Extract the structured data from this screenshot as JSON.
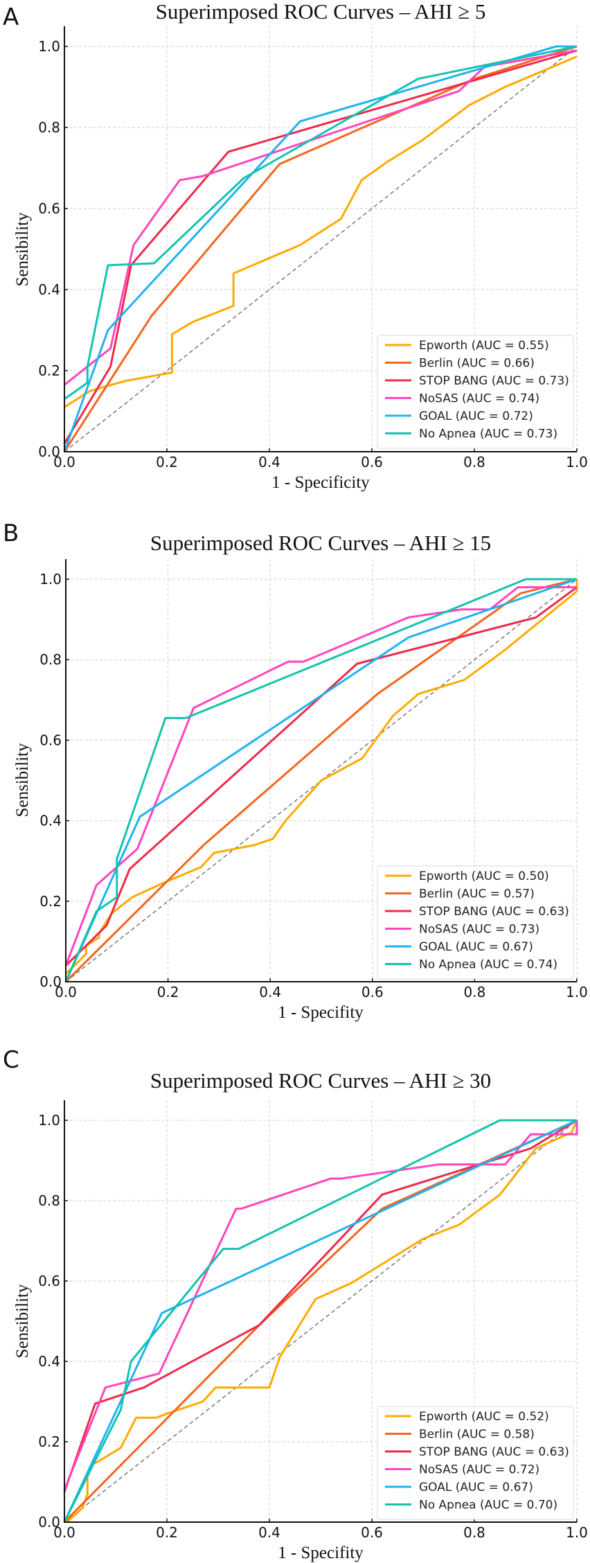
{
  "figure": {
    "panels": [
      "A",
      "B",
      "C"
    ]
  },
  "chart_data": [
    {
      "panel": "A",
      "type": "line",
      "title": "Superimposed ROC Curves – AHI ≥ 5",
      "xlabel": "1 - Specificity",
      "ylabel": "Sensibility",
      "xlim": [
        0,
        1
      ],
      "ylim": [
        0,
        1.05
      ],
      "xticks": [
        "0.0",
        "0.2",
        "0.4",
        "0.6",
        "0.8",
        "1.0"
      ],
      "yticks": [
        "0.0",
        "0.2",
        "0.4",
        "0.6",
        "0.8",
        "1.0"
      ],
      "grid": true,
      "legend_position": "lower-right",
      "reference_line": "diagonal dashed (chance)",
      "series": [
        {
          "name": "Epworth",
          "label": "Epworth (AUC = 0.55)",
          "auc": 0.55,
          "color": "#FFAA00",
          "points": [
            [
              0,
              0.11
            ],
            [
              0.05,
              0.15
            ],
            [
              0.12,
              0.175
            ],
            [
              0.21,
              0.195
            ],
            [
              0.21,
              0.29
            ],
            [
              0.25,
              0.32
            ],
            [
              0.33,
              0.36
            ],
            [
              0.33,
              0.44
            ],
            [
              0.46,
              0.51
            ],
            [
              0.54,
              0.575
            ],
            [
              0.58,
              0.67
            ],
            [
              0.63,
              0.715
            ],
            [
              0.7,
              0.77
            ],
            [
              0.79,
              0.855
            ],
            [
              0.86,
              0.9
            ],
            [
              1,
              0.975
            ]
          ]
        },
        {
          "name": "Berlin",
          "label": "Berlin (AUC = 0.66)",
          "auc": 0.66,
          "color": "#F5651C",
          "points": [
            [
              0,
              0
            ],
            [
              0.17,
              0.335
            ],
            [
              0.42,
              0.71
            ],
            [
              0.8,
              0.92
            ],
            [
              1,
              1
            ]
          ]
        },
        {
          "name": "STOP BANG",
          "label": "STOP BANG (AUC = 0.73)",
          "auc": 0.73,
          "color": "#EC2A4C",
          "points": [
            [
              0,
              0.02
            ],
            [
              0.09,
              0.21
            ],
            [
              0.13,
              0.46
            ],
            [
              0.32,
              0.74
            ],
            [
              1,
              0.99
            ]
          ]
        },
        {
          "name": "NoSAS",
          "label": "NoSAS (AUC = 0.74)",
          "auc": 0.74,
          "color": "#FF45BE",
          "points": [
            [
              0,
              0.165
            ],
            [
              0.09,
              0.255
            ],
            [
              0.135,
              0.51
            ],
            [
              0.225,
              0.67
            ],
            [
              0.27,
              0.68
            ],
            [
              0.77,
              0.89
            ],
            [
              0.82,
              0.95
            ],
            [
              1,
              0.99
            ]
          ]
        },
        {
          "name": "GOAL",
          "label": "GOAL (AUC = 0.72)",
          "auc": 0.72,
          "color": "#1FB3F0",
          "points": [
            [
              0,
              0
            ],
            [
              0.085,
              0.3
            ],
            [
              0.46,
              0.815
            ],
            [
              0.96,
              1
            ],
            [
              1,
              1
            ]
          ]
        },
        {
          "name": "No Apnea",
          "label": "No Apnea (AUC = 0.73)",
          "auc": 0.73,
          "color": "#14C3AE",
          "points": [
            [
              0,
              0.13
            ],
            [
              0.045,
              0.17
            ],
            [
              0.045,
              0.21
            ],
            [
              0.085,
              0.46
            ],
            [
              0.175,
              0.465
            ],
            [
              0.35,
              0.675
            ],
            [
              0.69,
              0.92
            ],
            [
              1,
              1
            ]
          ]
        }
      ]
    },
    {
      "panel": "B",
      "type": "line",
      "title": "Superimposed ROC Curves – AHI ≥ 15",
      "xlabel": "1 - Specifity",
      "ylabel": "Sensibility",
      "xlim": [
        0,
        1
      ],
      "ylim": [
        0,
        1.05
      ],
      "xticks": [
        "0.0",
        "0.2",
        "0.4",
        "0.6",
        "0.8",
        "1.0"
      ],
      "yticks": [
        "0.0",
        "0.2",
        "0.4",
        "0.6",
        "0.8",
        "1.0"
      ],
      "grid": true,
      "legend_position": "lower-right",
      "reference_line": "diagonal dashed (chance)",
      "series": [
        {
          "name": "Epworth",
          "label": "Epworth (AUC = 0.50)",
          "auc": 0.5,
          "color": "#FFAA00",
          "points": [
            [
              0,
              0.02
            ],
            [
              0.025,
              0.05
            ],
            [
              0.04,
              0.07
            ],
            [
              0.04,
              0.09
            ],
            [
              0.065,
              0.11
            ],
            [
              0.065,
              0.12
            ],
            [
              0.09,
              0.17
            ],
            [
              0.13,
              0.21
            ],
            [
              0.19,
              0.245
            ],
            [
              0.265,
              0.285
            ],
            [
              0.29,
              0.32
            ],
            [
              0.37,
              0.34
            ],
            [
              0.405,
              0.355
            ],
            [
              0.43,
              0.4
            ],
            [
              0.5,
              0.5
            ],
            [
              0.58,
              0.555
            ],
            [
              0.64,
              0.66
            ],
            [
              0.69,
              0.715
            ],
            [
              0.78,
              0.75
            ],
            [
              0.86,
              0.825
            ],
            [
              1,
              0.97
            ],
            [
              1,
              1
            ]
          ]
        },
        {
          "name": "Berlin",
          "label": "Berlin (AUC = 0.57)",
          "auc": 0.57,
          "color": "#F5651C",
          "points": [
            [
              0,
              0
            ],
            [
              0.27,
              0.34
            ],
            [
              0.61,
              0.715
            ],
            [
              0.89,
              0.965
            ],
            [
              1,
              1
            ]
          ]
        },
        {
          "name": "STOP BANG",
          "label": "STOP BANG (AUC = 0.63)",
          "auc": 0.63,
          "color": "#EC2A4C",
          "points": [
            [
              0,
              0.04
            ],
            [
              0.08,
              0.14
            ],
            [
              0.125,
              0.28
            ],
            [
              0.57,
              0.79
            ],
            [
              0.92,
              0.905
            ],
            [
              1,
              0.98
            ]
          ]
        },
        {
          "name": "NoSAS",
          "label": "NoSAS (AUC = 0.73)",
          "auc": 0.73,
          "color": "#FF45BE",
          "points": [
            [
              0,
              0.04
            ],
            [
              0.06,
              0.24
            ],
            [
              0.14,
              0.33
            ],
            [
              0.25,
              0.68
            ],
            [
              0.435,
              0.795
            ],
            [
              0.465,
              0.795
            ],
            [
              0.67,
              0.905
            ],
            [
              0.775,
              0.925
            ],
            [
              0.83,
              0.925
            ],
            [
              0.885,
              0.98
            ],
            [
              1,
              0.98
            ]
          ]
        },
        {
          "name": "GOAL",
          "label": "GOAL (AUC = 0.67)",
          "auc": 0.67,
          "color": "#1FB3F0",
          "points": [
            [
              0,
              0
            ],
            [
              0.145,
              0.41
            ],
            [
              0.67,
              0.855
            ],
            [
              1,
              1
            ]
          ]
        },
        {
          "name": "No Apnea",
          "label": "No Apnea (AUC = 0.74)",
          "auc": 0.74,
          "color": "#14C3AE",
          "points": [
            [
              0,
              0
            ],
            [
              0.06,
              0.175
            ],
            [
              0.1,
              0.21
            ],
            [
              0.1,
              0.305
            ],
            [
              0.195,
              0.655
            ],
            [
              0.235,
              0.655
            ],
            [
              0.9,
              1
            ],
            [
              1,
              1
            ]
          ]
        }
      ]
    },
    {
      "panel": "C",
      "type": "line",
      "title": "Superimposed ROC Curves – AHI ≥ 30",
      "xlabel": "1 - Specifity",
      "ylabel": "Sensibility",
      "xlim": [
        0,
        1
      ],
      "ylim": [
        0,
        1.05
      ],
      "xticks": [
        "0.0",
        "0.2",
        "0.4",
        "0.6",
        "0.8",
        "1.0"
      ],
      "yticks": [
        "0.0",
        "0.2",
        "0.4",
        "0.6",
        "0.8",
        "1.0"
      ],
      "grid": true,
      "legend_position": "lower-right",
      "reference_line": "diagonal dashed (chance)",
      "series": [
        {
          "name": "Epworth",
          "label": "Epworth (AUC = 0.52)",
          "auc": 0.52,
          "color": "#FFAA00",
          "points": [
            [
              0.005,
              0
            ],
            [
              0.035,
              0.035
            ],
            [
              0.045,
              0.07
            ],
            [
              0.045,
              0.12
            ],
            [
              0.055,
              0.145
            ],
            [
              0.065,
              0.15
            ],
            [
              0.11,
              0.185
            ],
            [
              0.14,
              0.26
            ],
            [
              0.18,
              0.26
            ],
            [
              0.2,
              0.27
            ],
            [
              0.27,
              0.3
            ],
            [
              0.295,
              0.335
            ],
            [
              0.4,
              0.335
            ],
            [
              0.42,
              0.41
            ],
            [
              0.49,
              0.555
            ],
            [
              0.56,
              0.595
            ],
            [
              0.7,
              0.705
            ],
            [
              0.77,
              0.74
            ],
            [
              0.85,
              0.815
            ],
            [
              0.92,
              0.93
            ],
            [
              0.99,
              0.97
            ],
            [
              1,
              1
            ]
          ]
        },
        {
          "name": "Berlin",
          "label": "Berlin (AUC = 0.58)",
          "auc": 0.58,
          "color": "#F5651C",
          "points": [
            [
              0,
              0
            ],
            [
              0.38,
              0.49
            ],
            [
              0.62,
              0.78
            ],
            [
              1,
              1
            ]
          ]
        },
        {
          "name": "STOP BANG",
          "label": "STOP BANG (AUC = 0.63)",
          "auc": 0.63,
          "color": "#EC2A4C",
          "points": [
            [
              0,
              0.075
            ],
            [
              0.06,
              0.295
            ],
            [
              0.155,
              0.335
            ],
            [
              0.38,
              0.49
            ],
            [
              0.62,
              0.815
            ],
            [
              0.91,
              0.93
            ],
            [
              1,
              1
            ]
          ]
        },
        {
          "name": "NoSAS",
          "label": "NoSAS (AUC = 0.72)",
          "auc": 0.72,
          "color": "#FF45BE",
          "points": [
            [
              0,
              0.08
            ],
            [
              0.08,
              0.335
            ],
            [
              0.185,
              0.37
            ],
            [
              0.335,
              0.78
            ],
            [
              0.345,
              0.78
            ],
            [
              0.52,
              0.855
            ],
            [
              0.54,
              0.855
            ],
            [
              0.73,
              0.89
            ],
            [
              0.86,
              0.89
            ],
            [
              0.91,
              0.965
            ],
            [
              1,
              0.965
            ],
            [
              1,
              1
            ]
          ]
        },
        {
          "name": "GOAL",
          "label": "GOAL (AUC = 0.67)",
          "auc": 0.67,
          "color": "#1FB3F0",
          "points": [
            [
              0,
              0
            ],
            [
              0.19,
              0.52
            ],
            [
              1,
              1
            ]
          ]
        },
        {
          "name": "No Apnea",
          "label": "No Apnea (AUC = 0.70)",
          "auc": 0.7,
          "color": "#14C3AE",
          "points": [
            [
              0,
              0
            ],
            [
              0.11,
              0.28
            ],
            [
              0.13,
              0.4
            ],
            [
              0.31,
              0.68
            ],
            [
              0.34,
              0.68
            ],
            [
              0.85,
              1
            ],
            [
              1,
              1
            ]
          ]
        }
      ]
    }
  ]
}
